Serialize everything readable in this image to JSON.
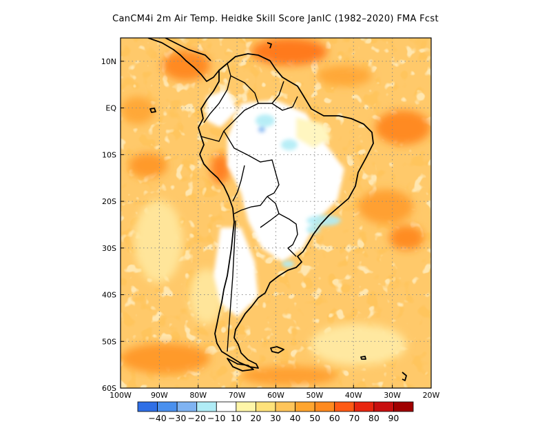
{
  "title": "CanCM4i  2m Air Temp. Heidke Skill Score JanIC (1982–2020) FMA Fcst",
  "map": {
    "lat_range": [
      -60,
      15
    ],
    "lon_range": [
      -100,
      -20
    ],
    "lat_ticks": [
      {
        "value": 10,
        "label": "10N"
      },
      {
        "value": 0,
        "label": "EQ"
      },
      {
        "value": -10,
        "label": "10S"
      },
      {
        "value": -20,
        "label": "20S"
      },
      {
        "value": -30,
        "label": "30S"
      },
      {
        "value": -40,
        "label": "40S"
      },
      {
        "value": -50,
        "label": "50S"
      },
      {
        "value": -60,
        "label": "60S"
      }
    ],
    "lon_ticks": [
      {
        "value": -100,
        "label": "100W"
      },
      {
        "value": -90,
        "label": "90W"
      },
      {
        "value": -80,
        "label": "80W"
      },
      {
        "value": -70,
        "label": "70W"
      },
      {
        "value": -60,
        "label": "60W"
      },
      {
        "value": -50,
        "label": "50W"
      },
      {
        "value": -40,
        "label": "40W"
      },
      {
        "value": -30,
        "label": "30W"
      },
      {
        "value": -20,
        "label": "20W"
      }
    ],
    "gridlines": "dotted"
  },
  "colorbar": {
    "colors": [
      "#2f6fe6",
      "#4a90ee",
      "#7fb3f2",
      "#b0ecf6",
      "#ffffff",
      "#fff6a8",
      "#ffe27a",
      "#ffc55a",
      "#ffa52e",
      "#ff8a1e",
      "#ff5a14",
      "#e8260f",
      "#c80f0f",
      "#a00000"
    ],
    "labels": [
      "-40",
      "-30",
      "-20",
      "-10",
      "10",
      "20",
      "30",
      "40",
      "50",
      "60",
      "70",
      "80",
      "90"
    ]
  }
}
